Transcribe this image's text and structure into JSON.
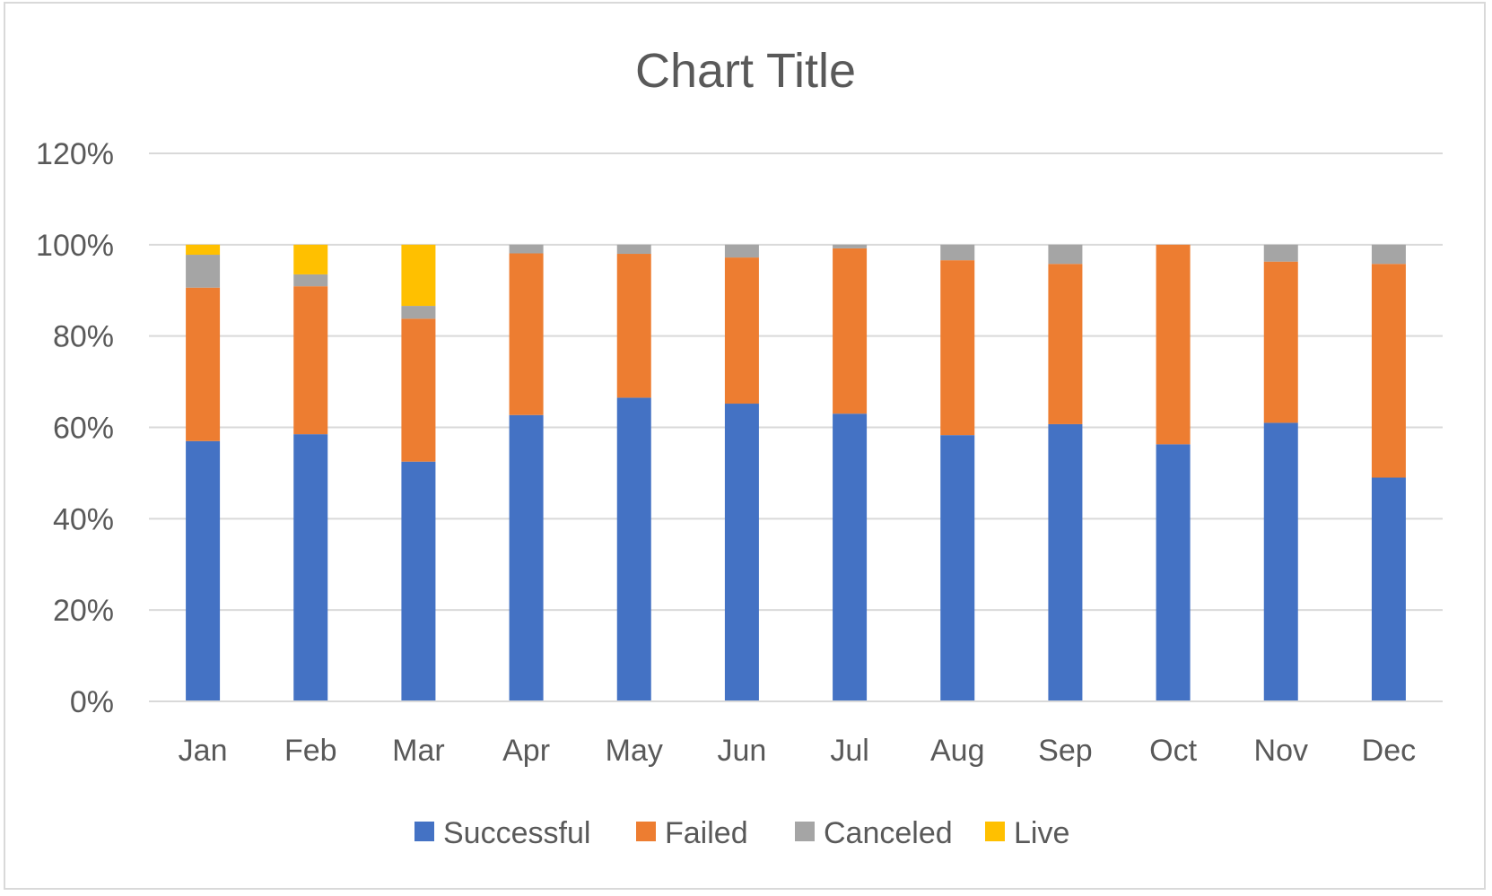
{
  "chart_data": {
    "type": "bar",
    "stacked": true,
    "title": "Chart Title",
    "xlabel": "",
    "ylabel": "",
    "ylim": [
      0,
      1.2
    ],
    "y_ticks": [
      0,
      0.2,
      0.4,
      0.6,
      0.8,
      1.0,
      1.2
    ],
    "y_tick_labels": [
      "0%",
      "20%",
      "40%",
      "60%",
      "80%",
      "100%",
      "120%"
    ],
    "grid": true,
    "legend_position": "bottom",
    "categories": [
      "Jan",
      "Feb",
      "Mar",
      "Apr",
      "May",
      "Jun",
      "Jul",
      "Aug",
      "Sep",
      "Oct",
      "Nov",
      "Dec"
    ],
    "series": [
      {
        "name": "Successful",
        "color": "#4472C4",
        "values": [
          0.57,
          0.585,
          0.525,
          0.627,
          0.665,
          0.652,
          0.63,
          0.583,
          0.607,
          0.563,
          0.61,
          0.49
        ]
      },
      {
        "name": "Failed",
        "color": "#ED7D31",
        "values": [
          0.336,
          0.324,
          0.313,
          0.354,
          0.315,
          0.32,
          0.362,
          0.383,
          0.351,
          0.437,
          0.353,
          0.468
        ]
      },
      {
        "name": "Canceled",
        "color": "#A5A5A5",
        "values": [
          0.072,
          0.026,
          0.028,
          0.019,
          0.02,
          0.028,
          0.008,
          0.034,
          0.042,
          0.0,
          0.037,
          0.042
        ]
      },
      {
        "name": "Live",
        "color": "#FFC000",
        "values": [
          0.022,
          0.065,
          0.134,
          0.0,
          0.0,
          0.0,
          0.0,
          0.0,
          0.0,
          0.0,
          0.0,
          0.0
        ]
      }
    ]
  }
}
